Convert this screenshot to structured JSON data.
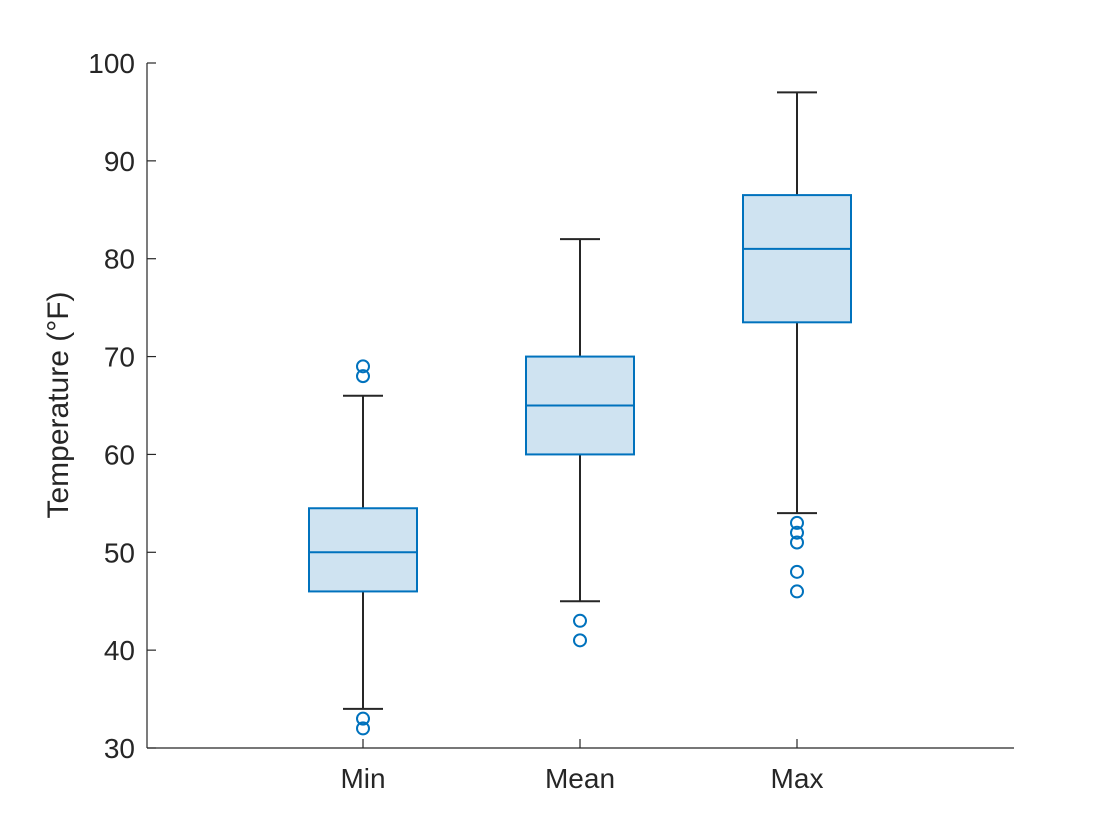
{
  "chart_data": {
    "type": "box",
    "title": "",
    "xlabel": "",
    "ylabel": "Temperature (°F)",
    "ylim": [
      30,
      100
    ],
    "yticks": [
      30,
      40,
      50,
      60,
      70,
      80,
      90,
      100
    ],
    "grid": false,
    "colors": {
      "box_edge": "#0072BD",
      "box_fill": "#cfe3f1",
      "whisker": "#262626",
      "outlier": "#0072BD"
    },
    "categories": [
      "Min",
      "Mean",
      "Max"
    ],
    "boxes": [
      {
        "category": "Min",
        "q1": 46,
        "median": 50,
        "q3": 54.5,
        "whisker_low": 34,
        "whisker_high": 66,
        "outliers": [
          32,
          33,
          68,
          69
        ]
      },
      {
        "category": "Mean",
        "q1": 60,
        "median": 65,
        "q3": 70,
        "whisker_low": 45,
        "whisker_high": 82,
        "outliers": [
          41,
          43
        ]
      },
      {
        "category": "Max",
        "q1": 73.5,
        "median": 81,
        "q3": 86.5,
        "whisker_low": 54,
        "whisker_high": 97,
        "outliers": [
          46,
          48,
          51,
          52,
          53
        ]
      }
    ]
  }
}
